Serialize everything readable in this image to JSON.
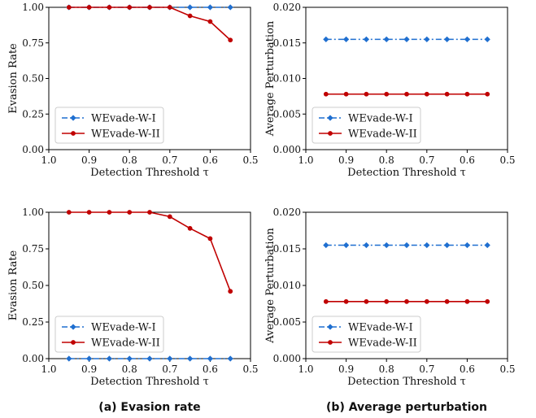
{
  "chart_data": [
    {
      "id": "top-left",
      "type": "line",
      "title": "",
      "xlabel": "Detection Threshold τ",
      "ylabel": "Evasion Rate",
      "x_reversed": true,
      "xlim": [
        1.0,
        0.5
      ],
      "ylim": [
        0.0,
        1.0
      ],
      "x_ticks": [
        "1.0",
        "0.9",
        "0.8",
        "0.7",
        "0.6",
        "0.5"
      ],
      "y_ticks": [
        "0.00",
        "0.25",
        "0.50",
        "0.75",
        "1.00"
      ],
      "grid": false,
      "legend_position": "lower-left",
      "x": [
        0.95,
        0.9,
        0.85,
        0.8,
        0.75,
        0.7,
        0.65,
        0.6,
        0.55
      ],
      "series": [
        {
          "name": "WEvade-W-I",
          "color": "#1f6fd0",
          "line_style": "dashdot",
          "marker": "diamond",
          "values": [
            1.0,
            1.0,
            1.0,
            1.0,
            1.0,
            1.0,
            1.0,
            1.0,
            1.0
          ]
        },
        {
          "name": "WEvade-W-II",
          "color": "#c00000",
          "line_style": "solid",
          "marker": "circle",
          "values": [
            1.0,
            1.0,
            1.0,
            1.0,
            1.0,
            1.0,
            0.94,
            0.9,
            0.77
          ]
        }
      ]
    },
    {
      "id": "top-right",
      "type": "line",
      "title": "",
      "xlabel": "Detection Threshold τ",
      "ylabel": "Average Perturbation",
      "x_reversed": true,
      "xlim": [
        1.0,
        0.5
      ],
      "ylim": [
        0.0,
        0.02
      ],
      "x_ticks": [
        "1.0",
        "0.9",
        "0.8",
        "0.7",
        "0.6",
        "0.5"
      ],
      "y_ticks": [
        "0.000",
        "0.005",
        "0.010",
        "0.015",
        "0.020"
      ],
      "grid": false,
      "legend_position": "lower-left",
      "x": [
        0.95,
        0.9,
        0.85,
        0.8,
        0.75,
        0.7,
        0.65,
        0.6,
        0.55
      ],
      "series": [
        {
          "name": "WEvade-W-I",
          "color": "#1f6fd0",
          "line_style": "dashdot",
          "marker": "diamond",
          "values": [
            0.0155,
            0.0155,
            0.0155,
            0.0155,
            0.0155,
            0.0155,
            0.0155,
            0.0155,
            0.0155
          ]
        },
        {
          "name": "WEvade-W-II",
          "color": "#c00000",
          "line_style": "solid",
          "marker": "circle",
          "values": [
            0.0078,
            0.0078,
            0.0078,
            0.0078,
            0.0078,
            0.0078,
            0.0078,
            0.0078,
            0.0078
          ]
        }
      ]
    },
    {
      "id": "bottom-left",
      "type": "line",
      "title": "",
      "xlabel": "Detection Threshold τ",
      "ylabel": "Evasion Rate",
      "x_reversed": true,
      "xlim": [
        1.0,
        0.5
      ],
      "ylim": [
        0.0,
        1.0
      ],
      "x_ticks": [
        "1.0",
        "0.9",
        "0.8",
        "0.7",
        "0.6",
        "0.5"
      ],
      "y_ticks": [
        "0.00",
        "0.25",
        "0.50",
        "0.75",
        "1.00"
      ],
      "grid": false,
      "legend_position": "lower-left",
      "x": [
        0.95,
        0.9,
        0.85,
        0.8,
        0.75,
        0.7,
        0.65,
        0.6,
        0.55
      ],
      "series": [
        {
          "name": "WEvade-W-I",
          "color": "#1f6fd0",
          "line_style": "dashdot",
          "marker": "diamond",
          "values": [
            0.0,
            0.0,
            0.0,
            0.0,
            0.0,
            0.0,
            0.0,
            0.0,
            0.0
          ]
        },
        {
          "name": "WEvade-W-II",
          "color": "#c00000",
          "line_style": "solid",
          "marker": "circle",
          "values": [
            1.0,
            1.0,
            1.0,
            1.0,
            1.0,
            0.97,
            0.89,
            0.82,
            0.46
          ]
        }
      ]
    },
    {
      "id": "bottom-right",
      "type": "line",
      "title": "",
      "xlabel": "Detection Threshold τ",
      "ylabel": "Average Perturbation",
      "x_reversed": true,
      "xlim": [
        1.0,
        0.5
      ],
      "ylim": [
        0.0,
        0.02
      ],
      "x_ticks": [
        "1.0",
        "0.9",
        "0.8",
        "0.7",
        "0.6",
        "0.5"
      ],
      "y_ticks": [
        "0.000",
        "0.005",
        "0.010",
        "0.015",
        "0.020"
      ],
      "grid": false,
      "legend_position": "lower-left",
      "x": [
        0.95,
        0.9,
        0.85,
        0.8,
        0.75,
        0.7,
        0.65,
        0.6,
        0.55
      ],
      "series": [
        {
          "name": "WEvade-W-I",
          "color": "#1f6fd0",
          "line_style": "dashdot",
          "marker": "diamond",
          "values": [
            0.0155,
            0.0155,
            0.0155,
            0.0155,
            0.0155,
            0.0155,
            0.0155,
            0.0155,
            0.0155
          ]
        },
        {
          "name": "WEvade-W-II",
          "color": "#c00000",
          "line_style": "solid",
          "marker": "circle",
          "values": [
            0.0078,
            0.0078,
            0.0078,
            0.0078,
            0.0078,
            0.0078,
            0.0078,
            0.0078,
            0.0078
          ]
        }
      ]
    }
  ],
  "captions": {
    "left": "(a) Evasion rate",
    "right": "(b) Average perturbation"
  }
}
